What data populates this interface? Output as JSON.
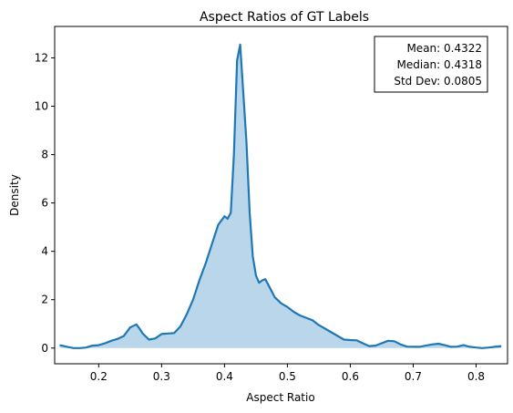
{
  "chart_data": {
    "type": "area",
    "title": "Aspect Ratios of GT Labels",
    "xlabel": "Aspect Ratio",
    "ylabel": "Density",
    "xlim": [
      0.13,
      0.85
    ],
    "ylim": [
      -0.65,
      13.3
    ],
    "xticks": [
      0.2,
      0.3,
      0.4,
      0.5,
      0.6,
      0.7,
      0.8
    ],
    "xtick_labels": [
      "0.2",
      "0.3",
      "0.4",
      "0.5",
      "0.6",
      "0.7",
      "0.8"
    ],
    "yticks": [
      0,
      2,
      4,
      6,
      8,
      10,
      12
    ],
    "ytick_labels": [
      "0",
      "2",
      "4",
      "6",
      "8",
      "10",
      "12"
    ],
    "grid": false,
    "line_color": "#1f77b4",
    "fill_color": "#bad6ea",
    "series": [
      {
        "x": [
          0.138,
          0.15,
          0.16,
          0.17,
          0.18,
          0.19,
          0.2,
          0.21,
          0.22,
          0.23,
          0.24,
          0.25,
          0.26,
          0.265,
          0.27,
          0.28,
          0.29,
          0.3,
          0.31,
          0.32,
          0.33,
          0.34,
          0.35,
          0.36,
          0.37,
          0.38,
          0.39,
          0.4,
          0.405,
          0.41,
          0.415,
          0.42,
          0.425,
          0.43,
          0.435,
          0.44,
          0.445,
          0.45,
          0.455,
          0.46,
          0.465,
          0.47,
          0.48,
          0.49,
          0.5,
          0.51,
          0.52,
          0.53,
          0.54,
          0.55,
          0.56,
          0.57,
          0.58,
          0.59,
          0.6,
          0.61,
          0.62,
          0.63,
          0.64,
          0.65,
          0.66,
          0.67,
          0.68,
          0.69,
          0.7,
          0.71,
          0.72,
          0.73,
          0.74,
          0.75,
          0.76,
          0.77,
          0.78,
          0.79,
          0.8,
          0.81,
          0.82,
          0.83,
          0.84
        ],
        "y": [
          0.12,
          0.05,
          0.0,
          0.0,
          0.02,
          0.1,
          0.12,
          0.2,
          0.3,
          0.38,
          0.5,
          0.85,
          0.98,
          0.8,
          0.6,
          0.35,
          0.4,
          0.58,
          0.6,
          0.62,
          0.9,
          1.4,
          2.0,
          2.8,
          3.5,
          4.3,
          5.1,
          5.45,
          5.35,
          5.6,
          8.0,
          11.9,
          12.55,
          10.5,
          8.5,
          5.6,
          3.8,
          3.0,
          2.7,
          2.8,
          2.85,
          2.6,
          2.1,
          1.85,
          1.7,
          1.5,
          1.35,
          1.25,
          1.15,
          0.95,
          0.8,
          0.65,
          0.5,
          0.35,
          0.33,
          0.32,
          0.2,
          0.08,
          0.1,
          0.2,
          0.3,
          0.28,
          0.15,
          0.06,
          0.05,
          0.05,
          0.1,
          0.15,
          0.18,
          0.12,
          0.05,
          0.06,
          0.12,
          0.05,
          0.02,
          0.0,
          0.02,
          0.05,
          0.08
        ]
      }
    ],
    "annotation": {
      "position": "top-right",
      "lines": [
        "Mean: 0.4322",
        "Median: 0.4318",
        "Std Dev: 0.0805"
      ]
    }
  }
}
